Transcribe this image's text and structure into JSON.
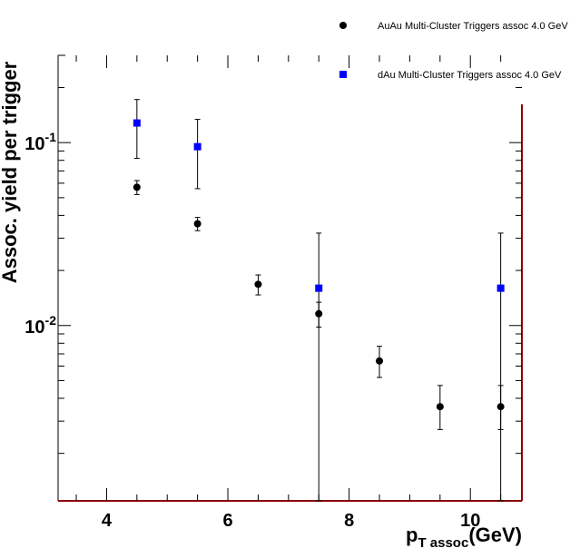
{
  "chart_data": {
    "type": "scatter",
    "title": "",
    "xlabel": "p_{T assoc}(GeV)",
    "xlabel_parts": {
      "main": "p",
      "sub": "T assoc",
      "unit": "(GeV)"
    },
    "ylabel": "Assoc. yield per trigger",
    "xlim": [
      3.2,
      10.85
    ],
    "ylim": [
      0.0011,
      0.3
    ],
    "yscale": "log",
    "grid": false,
    "legend_position": "top-right",
    "x_ticks": [
      {
        "value": 4,
        "label": "4"
      },
      {
        "value": 6,
        "label": "6"
      },
      {
        "value": 8,
        "label": "8"
      },
      {
        "value": 10,
        "label": "10"
      }
    ],
    "y_ticks": [
      {
        "value": 0.01,
        "base": "10",
        "exp": "-2"
      },
      {
        "value": 0.1,
        "base": "10",
        "exp": "-1"
      }
    ],
    "series": [
      {
        "name": "AuAu Multi-Cluster Triggers assoc 4.0 GeV",
        "marker": "circle",
        "color": "#000000",
        "points": [
          {
            "x": 4.5,
            "y": 0.057,
            "ylo": 0.052,
            "yhi": 0.062
          },
          {
            "x": 5.5,
            "y": 0.036,
            "ylo": 0.033,
            "yhi": 0.039
          },
          {
            "x": 6.5,
            "y": 0.0168,
            "ylo": 0.0147,
            "yhi": 0.0189
          },
          {
            "x": 7.5,
            "y": 0.0116,
            "ylo": 0.0098,
            "yhi": 0.0134
          },
          {
            "x": 8.5,
            "y": 0.0064,
            "ylo": 0.0052,
            "yhi": 0.0077
          },
          {
            "x": 9.5,
            "y": 0.0036,
            "ylo": 0.0027,
            "yhi": 0.0047
          },
          {
            "x": 10.5,
            "y": 0.0036,
            "ylo": 0.0027,
            "yhi": 0.0047
          }
        ]
      },
      {
        "name": "dAu Multi-Cluster Triggers assoc 4.0 GeV",
        "marker": "square",
        "color": "#0000ff",
        "points": [
          {
            "x": 4.5,
            "y": 0.128,
            "ylo": 0.082,
            "yhi": 0.172
          },
          {
            "x": 5.5,
            "y": 0.095,
            "ylo": 0.056,
            "yhi": 0.134
          },
          {
            "x": 7.5,
            "y": 0.016,
            "ylo": 0.0011,
            "yhi": 0.032
          },
          {
            "x": 10.5,
            "y": 0.016,
            "ylo": 0.0011,
            "yhi": 0.032
          }
        ]
      }
    ]
  }
}
